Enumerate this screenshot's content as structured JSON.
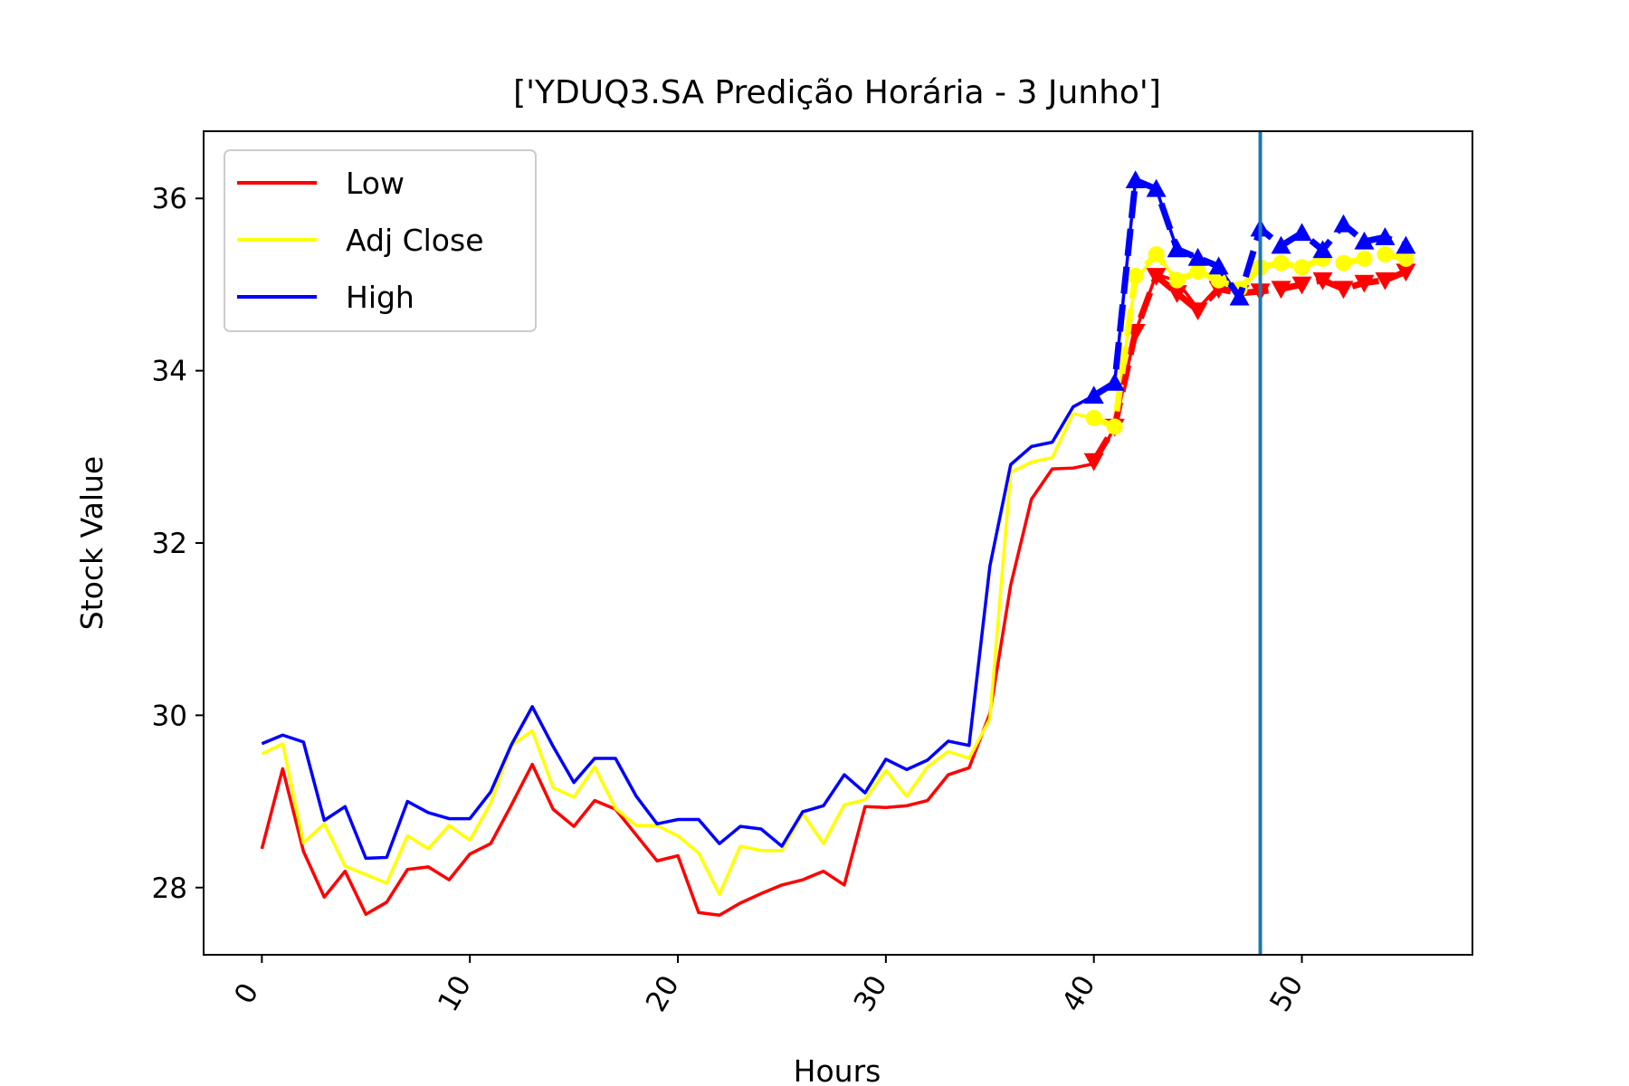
{
  "chart_data": {
    "type": "line",
    "title": "['YDUQ3.SA Predição Horária - 3 Junho']",
    "xlabel": "Hours",
    "ylabel": "Stock Value",
    "xlim": [
      -2.8,
      58.2
    ],
    "ylim": [
      27.22,
      36.78
    ],
    "xticks": [
      0,
      10,
      20,
      30,
      40,
      50
    ],
    "xtick_labels": [
      "0",
      "10",
      "20",
      "30",
      "40",
      "50"
    ],
    "yticks": [
      28,
      30,
      32,
      34,
      36
    ],
    "ytick_labels": [
      "28",
      "30",
      "32",
      "34",
      "36"
    ],
    "grid": false,
    "legend_position": "upper left",
    "vertical_line": {
      "x": 48,
      "color": "#1f77b4"
    },
    "series": [
      {
        "name": "Low",
        "color": "#ff0000",
        "values": [
          28.45,
          29.38,
          28.42,
          27.89,
          28.19,
          27.69,
          27.83,
          28.21,
          28.24,
          28.09,
          28.39,
          28.51,
          28.96,
          29.43,
          28.91,
          28.71,
          29.01,
          28.91,
          28.61,
          28.31,
          28.37,
          27.71,
          27.68,
          27.82,
          27.93,
          28.03,
          28.09,
          28.19,
          28.03,
          28.94,
          28.93,
          28.95,
          29.01,
          29.31,
          29.39,
          30.02,
          31.51,
          32.51,
          32.86,
          32.87,
          32.92,
          33.34,
          34.45,
          35.12,
          35.04,
          34.72,
          34.98,
          34.92
        ],
        "prediction": {
          "x": [
            40,
            41,
            42,
            43,
            44,
            45,
            46,
            47,
            48,
            49,
            50,
            51,
            52,
            53,
            54,
            55
          ],
          "values": [
            32.95,
            33.35,
            34.45,
            35.1,
            34.9,
            34.7,
            34.95,
            34.9,
            34.92,
            34.95,
            35.0,
            35.05,
            34.95,
            35.02,
            35.05,
            35.15
          ],
          "marker": "triangle-down"
        }
      },
      {
        "name": "Adj Close",
        "color": "#ffff00",
        "values": [
          29.55,
          29.67,
          28.52,
          28.74,
          28.25,
          28.15,
          28.05,
          28.6,
          28.45,
          28.72,
          28.55,
          28.98,
          29.65,
          29.82,
          29.16,
          29.05,
          29.4,
          28.92,
          28.72,
          28.72,
          28.6,
          28.4,
          27.92,
          28.48,
          28.43,
          28.43,
          28.86,
          28.51,
          28.96,
          29.02,
          29.36,
          29.06,
          29.4,
          29.58,
          29.5,
          29.96,
          32.82,
          32.94,
          32.99,
          33.5,
          33.45,
          33.4,
          35.05,
          35.35,
          35.05,
          35.15,
          35.05,
          34.95
        ],
        "prediction": {
          "x": [
            40,
            41,
            42,
            43,
            44,
            45,
            46,
            47,
            48,
            49,
            50,
            51,
            52,
            53,
            54,
            55
          ],
          "values": [
            33.45,
            33.35,
            35.1,
            35.35,
            35.05,
            35.15,
            35.05,
            34.95,
            35.2,
            35.25,
            35.2,
            35.3,
            35.25,
            35.3,
            35.35,
            35.3
          ],
          "marker": "circle"
        }
      },
      {
        "name": "High",
        "color": "#0000ff",
        "values": [
          29.67,
          29.77,
          29.69,
          28.78,
          28.94,
          28.34,
          28.35,
          29.0,
          28.87,
          28.8,
          28.8,
          29.11,
          29.66,
          30.1,
          29.64,
          29.22,
          29.5,
          29.5,
          29.06,
          28.74,
          28.79,
          28.79,
          28.51,
          28.71,
          28.68,
          28.48,
          28.88,
          28.95,
          29.31,
          29.1,
          29.49,
          29.37,
          29.48,
          29.7,
          29.65,
          31.73,
          32.91,
          33.12,
          33.17,
          33.58,
          33.71,
          33.86,
          36.21,
          36.11,
          35.41,
          35.31,
          35.21,
          34.85
        ],
        "prediction": {
          "x": [
            40,
            41,
            42,
            43,
            44,
            45,
            46,
            47,
            48,
            49,
            50,
            51,
            52,
            53,
            54,
            55
          ],
          "values": [
            33.71,
            33.86,
            36.21,
            36.11,
            35.41,
            35.31,
            35.21,
            34.85,
            35.65,
            35.45,
            35.6,
            35.4,
            35.7,
            35.5,
            35.55,
            35.45
          ],
          "marker": "triangle-up"
        }
      }
    ]
  }
}
